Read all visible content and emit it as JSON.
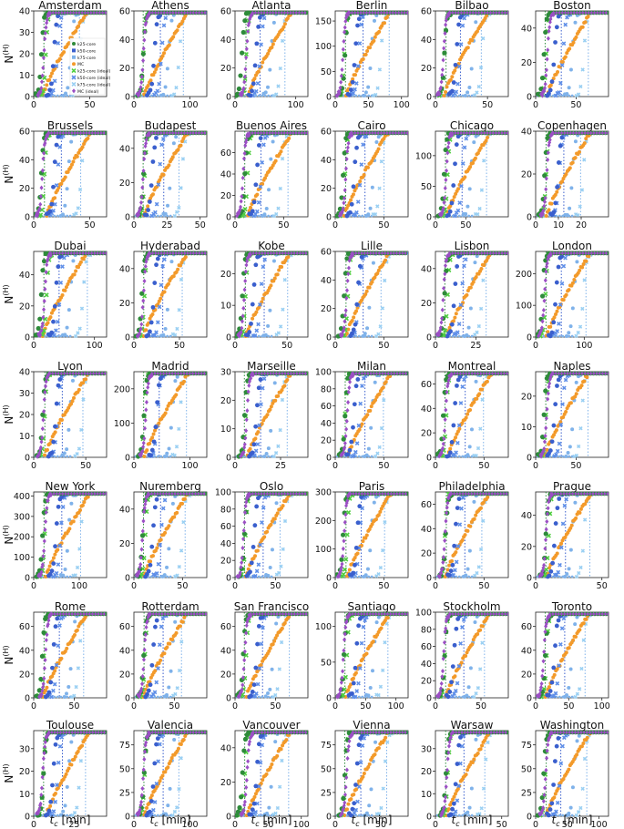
{
  "figure": {
    "ylabel": "N",
    "ylabel_sup": "(H)",
    "xlabel": "t",
    "xlabel_sub": "c",
    "xlabel_unit": " [min]"
  },
  "chart_data": {
    "type": "scatter",
    "legend_location": "inside first panel, right side",
    "grid": false,
    "legend": [
      {
        "name": "k25-core",
        "color": "#2e8b3a",
        "marker": "circle"
      },
      {
        "name": "k50-core",
        "color": "#3a5fcd",
        "marker": "circle"
      },
      {
        "name": "k75-core",
        "color": "#7fb2ea",
        "marker": "circle"
      },
      {
        "name": "MC",
        "color": "#f39a2a",
        "marker": "circle"
      },
      {
        "name": "k25-core (ideal)",
        "color": "#4fcf3f",
        "marker": "x"
      },
      {
        "name": "k50-core (ideal)",
        "color": "#5e8ee8",
        "marker": "x"
      },
      {
        "name": "k75-core (ideal)",
        "color": "#9ad0f3",
        "marker": "x"
      },
      {
        "name": "MC (ideal)",
        "color": "#9b4fc4",
        "marker": "diamond"
      }
    ],
    "panels": [
      {
        "city": "Amsterdam",
        "xticks": [
          0,
          50
        ],
        "xlim": [
          0,
          65
        ],
        "yticks": [
          0,
          10,
          20,
          30,
          40
        ],
        "ymax": 40
      },
      {
        "city": "Athens",
        "xticks": [
          0,
          100
        ],
        "xlim": [
          0,
          130
        ],
        "yticks": [
          0,
          20,
          40,
          60
        ],
        "ymax": 60
      },
      {
        "city": "Atlanta",
        "xticks": [
          0,
          100
        ],
        "xlim": [
          0,
          120
        ],
        "yticks": [
          0,
          20,
          40,
          60
        ],
        "ymax": 60
      },
      {
        "city": "Berlin",
        "xticks": [
          0,
          50,
          100
        ],
        "xlim": [
          0,
          110
        ],
        "yticks": [
          0,
          50,
          100,
          150
        ],
        "ymax": 170
      },
      {
        "city": "Bilbao",
        "xticks": [
          0,
          50
        ],
        "xlim": [
          0,
          70
        ],
        "yticks": [
          0,
          20,
          40,
          60
        ],
        "ymax": 60
      },
      {
        "city": "Boston",
        "xticks": [
          0,
          50
        ],
        "xlim": [
          0,
          90
        ],
        "yticks": [
          0,
          20,
          40
        ],
        "ymax": 50
      },
      {
        "city": "Brussels",
        "xticks": [
          0,
          50
        ],
        "xlim": [
          0,
          65
        ],
        "yticks": [
          0,
          20,
          40,
          60
        ],
        "ymax": 60
      },
      {
        "city": "Budapest",
        "xticks": [
          0,
          25,
          50
        ],
        "xlim": [
          0,
          55
        ],
        "yticks": [
          0,
          20,
          40
        ],
        "ymax": 50
      },
      {
        "city": "Buenos Aires",
        "xticks": [
          0,
          50
        ],
        "xlim": [
          0,
          75
        ],
        "yticks": [
          0,
          20,
          40,
          60
        ],
        "ymax": 80
      },
      {
        "city": "Cairo",
        "xticks": [
          0,
          50
        ],
        "xlim": [
          0,
          75
        ],
        "yticks": [
          0,
          20,
          40,
          60
        ],
        "ymax": 60
      },
      {
        "city": "Chicago",
        "xticks": [
          0,
          50
        ],
        "xlim": [
          0,
          120
        ],
        "yticks": [
          0,
          50,
          100
        ],
        "ymax": 140
      },
      {
        "city": "Copenhagen",
        "xticks": [
          0,
          10,
          20
        ],
        "xlim": [
          0,
          32
        ],
        "yticks": [
          0,
          20,
          40
        ],
        "ymax": 40
      },
      {
        "city": "Dubai",
        "xticks": [
          0,
          100
        ],
        "xlim": [
          0,
          120
        ],
        "yticks": [
          0,
          20,
          40
        ],
        "ymax": 55
      },
      {
        "city": "Hyderabad",
        "xticks": [
          0,
          50
        ],
        "xlim": [
          0,
          80
        ],
        "yticks": [
          0,
          20,
          40
        ],
        "ymax": 50
      },
      {
        "city": "Kobe",
        "xticks": [
          0,
          50
        ],
        "xlim": [
          0,
          70
        ],
        "yticks": [
          0,
          10,
          20
        ],
        "ymax": 27
      },
      {
        "city": "Lille",
        "xticks": [
          0,
          50
        ],
        "xlim": [
          0,
          75
        ],
        "yticks": [
          0,
          20,
          40,
          60
        ],
        "ymax": 60
      },
      {
        "city": "Lisbon",
        "xticks": [
          0,
          25
        ],
        "xlim": [
          0,
          45
        ],
        "yticks": [
          0,
          20,
          40
        ],
        "ymax": 50
      },
      {
        "city": "London",
        "xticks": [
          0,
          100
        ],
        "xlim": [
          0,
          150
        ],
        "yticks": [
          0,
          100,
          200
        ],
        "ymax": 270
      },
      {
        "city": "Lyon",
        "xticks": [
          0,
          50
        ],
        "xlim": [
          0,
          70
        ],
        "yticks": [
          0,
          10,
          20,
          30,
          40
        ],
        "ymax": 40
      },
      {
        "city": "Madrid",
        "xticks": [
          0,
          100
        ],
        "xlim": [
          0,
          130
        ],
        "yticks": [
          0,
          100,
          200
        ],
        "ymax": 250
      },
      {
        "city": "Marseille",
        "xticks": [
          0,
          25
        ],
        "xlim": [
          0,
          40
        ],
        "yticks": [
          0,
          10,
          20,
          30
        ],
        "ymax": 30
      },
      {
        "city": "Milan",
        "xticks": [
          0,
          50
        ],
        "xlim": [
          0,
          75
        ],
        "yticks": [
          0,
          20,
          40,
          60,
          80,
          100
        ],
        "ymax": 100
      },
      {
        "city": "Montreal",
        "xticks": [
          0,
          50
        ],
        "xlim": [
          0,
          75
        ],
        "yticks": [
          0,
          20,
          40,
          60
        ],
        "ymax": 70
      },
      {
        "city": "Naples",
        "xticks": [
          0,
          50
        ],
        "xlim": [
          0,
          90
        ],
        "yticks": [
          0,
          10,
          20
        ],
        "ymax": 28
      },
      {
        "city": "New York",
        "xticks": [
          0,
          100
        ],
        "xlim": [
          0,
          160
        ],
        "yticks": [
          0,
          100,
          200,
          300,
          400
        ],
        "ymax": 420
      },
      {
        "city": "Nuremberg",
        "xticks": [
          0,
          50
        ],
        "xlim": [
          0,
          75
        ],
        "yticks": [
          0,
          20,
          40
        ],
        "ymax": 50
      },
      {
        "city": "Oslo",
        "xticks": [
          0,
          50
        ],
        "xlim": [
          0,
          90
        ],
        "yticks": [
          0,
          20,
          40,
          60,
          80,
          100
        ],
        "ymax": 100
      },
      {
        "city": "Paris",
        "xticks": [
          0,
          50
        ],
        "xlim": [
          0,
          75
        ],
        "yticks": [
          0,
          100,
          200,
          300
        ],
        "ymax": 300
      },
      {
        "city": "Philadelphia",
        "xticks": [
          0,
          50
        ],
        "xlim": [
          0,
          75
        ],
        "yticks": [
          0,
          20,
          40,
          60
        ],
        "ymax": 70
      },
      {
        "city": "Prague",
        "xticks": [
          0,
          50
        ],
        "xlim": [
          0,
          55
        ],
        "yticks": [
          0,
          20,
          40
        ],
        "ymax": 55
      },
      {
        "city": "Rome",
        "xticks": [
          0,
          50
        ],
        "xlim": [
          0,
          90
        ],
        "yticks": [
          0,
          20,
          40,
          60
        ],
        "ymax": 72
      },
      {
        "city": "Rotterdam",
        "xticks": [
          0,
          50
        ],
        "xlim": [
          0,
          90
        ],
        "yticks": [
          0,
          20,
          40,
          60
        ],
        "ymax": 72
      },
      {
        "city": "San Francisco",
        "xticks": [
          0,
          50
        ],
        "xlim": [
          0,
          90
        ],
        "yticks": [
          0,
          20,
          40,
          60
        ],
        "ymax": 72
      },
      {
        "city": "Santiago",
        "xticks": [
          0,
          50,
          100
        ],
        "xlim": [
          0,
          120
        ],
        "yticks": [
          0,
          50,
          100
        ],
        "ymax": 120
      },
      {
        "city": "Stockholm",
        "xticks": [
          0,
          50
        ],
        "xlim": [
          0,
          80
        ],
        "yticks": [
          0,
          20,
          40,
          60,
          80,
          100
        ],
        "ymax": 100
      },
      {
        "city": "Toronto",
        "xticks": [
          0,
          50,
          100
        ],
        "xlim": [
          0,
          110
        ],
        "yticks": [
          0,
          20,
          40,
          60
        ],
        "ymax": 72
      },
      {
        "city": "Toulouse",
        "xticks": [
          0,
          25
        ],
        "xlim": [
          0,
          45
        ],
        "yticks": [
          0,
          10,
          20,
          30
        ],
        "ymax": 38
      },
      {
        "city": "Valencia",
        "xticks": [
          0,
          100
        ],
        "xlim": [
          0,
          130
        ],
        "yticks": [
          0,
          25,
          50,
          75
        ],
        "ymax": 90
      },
      {
        "city": "Vancouver",
        "xticks": [
          0,
          50,
          100
        ],
        "xlim": [
          0,
          110
        ],
        "yticks": [
          0,
          20,
          40
        ],
        "ymax": 50
      },
      {
        "city": "Vienna",
        "xticks": [
          0,
          50
        ],
        "xlim": [
          0,
          80
        ],
        "yticks": [
          0,
          25,
          50,
          75
        ],
        "ymax": 90
      },
      {
        "city": "Warsaw",
        "xticks": [
          0,
          50
        ],
        "xlim": [
          0,
          55
        ],
        "yticks": [
          0,
          10,
          20,
          30
        ],
        "ymax": 38
      },
      {
        "city": "Washington",
        "xticks": [
          0,
          50,
          100
        ],
        "xlim": [
          0,
          115
        ],
        "yticks": [
          0,
          25,
          50,
          75
        ],
        "ymax": 90
      }
    ],
    "series_onset_fraction": {
      "MC (ideal)": [
        0.05,
        0.22
      ],
      "k25-core": [
        0.04,
        0.2
      ],
      "k25-core (ideal)": [
        0.08,
        0.22
      ],
      "k50-core": [
        0.18,
        0.38
      ],
      "k50-core (ideal)": [
        0.25,
        0.45
      ],
      "MC": [
        0.15,
        0.75
      ],
      "k75-core": [
        0.4,
        0.6
      ],
      "k75-core (ideal)": [
        0.55,
        0.75
      ]
    }
  }
}
